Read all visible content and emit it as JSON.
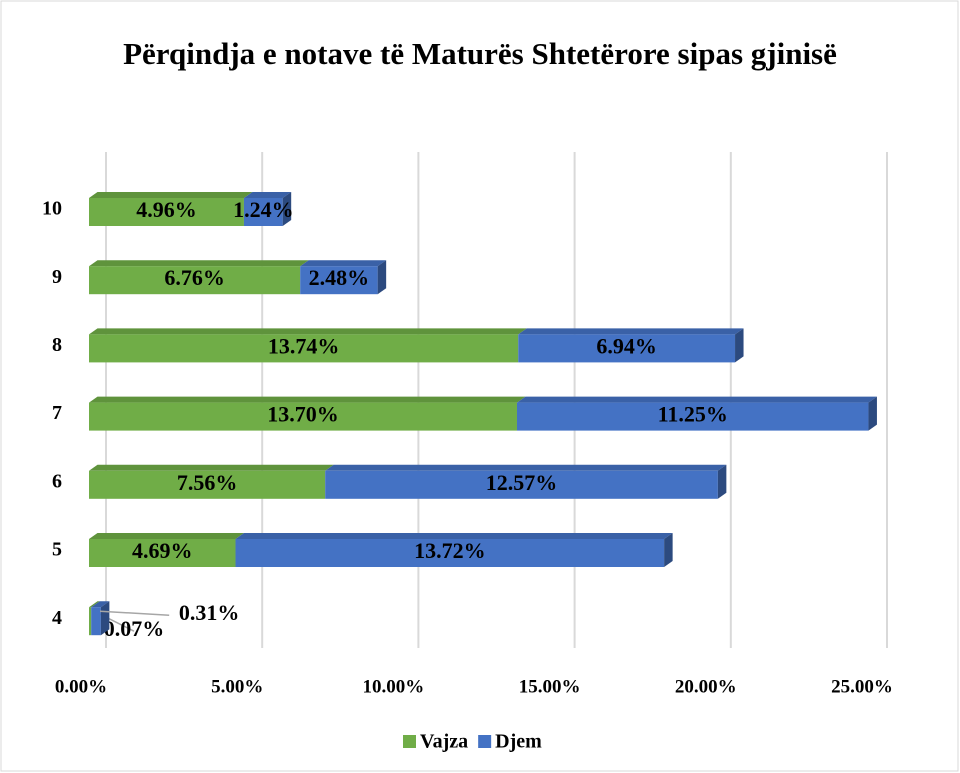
{
  "chart_data": {
    "type": "stacked-bar-horizontal",
    "title": "Përqindja e notave të Maturës Shtetërore sipas gjinisë",
    "categories": [
      "4",
      "5",
      "6",
      "7",
      "8",
      "9",
      "10"
    ],
    "series": [
      {
        "name": "Vajza",
        "color": "#70ad47",
        "values": [
          0.07,
          4.69,
          7.56,
          13.7,
          13.74,
          6.76,
          4.96
        ],
        "value_labels": [
          "0.07%",
          "4.69%",
          "7.56%",
          "13.70%",
          "13.74%",
          "6.76%",
          "4.96%"
        ]
      },
      {
        "name": "Djem",
        "color": "#4472c4",
        "values": [
          0.31,
          13.72,
          12.57,
          11.25,
          6.94,
          2.48,
          1.24
        ],
        "value_labels": [
          "0.31%",
          "13.72%",
          "12.57%",
          "11.25%",
          "6.94%",
          "2.48%",
          "1.24%"
        ]
      }
    ],
    "xlim": [
      0,
      25
    ],
    "xticks": [
      {
        "value": 0,
        "label": "0.00%"
      },
      {
        "value": 5,
        "label": "5.00%"
      },
      {
        "value": 10,
        "label": "10.00%"
      },
      {
        "value": 15,
        "label": "15.00%"
      },
      {
        "value": 20,
        "label": "20.00%"
      },
      {
        "value": 25,
        "label": "25.00%"
      }
    ],
    "grid": true,
    "legend": "bottom"
  }
}
